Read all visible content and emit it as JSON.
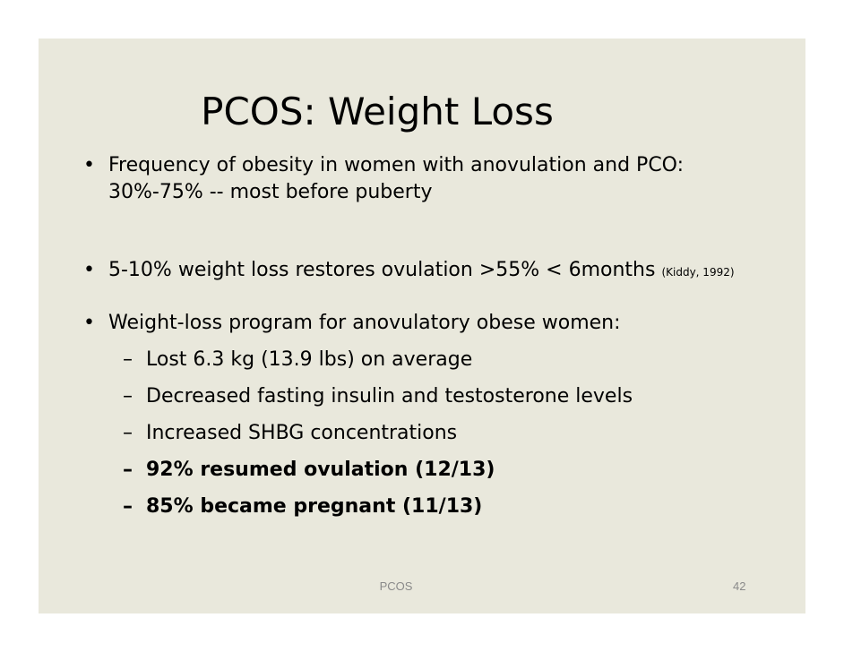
{
  "slide": {
    "title": "PCOS: Weight Loss",
    "bullets": [
      {
        "marker": "•",
        "line1": "Frequency of obesity in women with anovulation and PCO:",
        "line2": "30%-75% -- most before puberty"
      },
      {
        "marker": "•",
        "text": "5-10% weight loss restores ovulation >55%  < 6months",
        "citation": "(Kiddy, 1992)"
      },
      {
        "marker": "•",
        "text": "Weight-loss program for anovulatory obese women:"
      }
    ],
    "sub_bullets": [
      {
        "marker": "–",
        "text": "Lost 6.3 kg (13.9 lbs) on average"
      },
      {
        "marker": "–",
        "text": "Decreased fasting insulin and testosterone levels"
      },
      {
        "marker": "–",
        "text": "Increased SHBG concentrations"
      },
      {
        "marker": "–",
        "text": "92% resumed ovulation (12/13)"
      },
      {
        "marker": "–",
        "text": "85% became pregnant (11/13)"
      }
    ],
    "footer": {
      "label": "PCOS",
      "page_number": "42"
    }
  }
}
